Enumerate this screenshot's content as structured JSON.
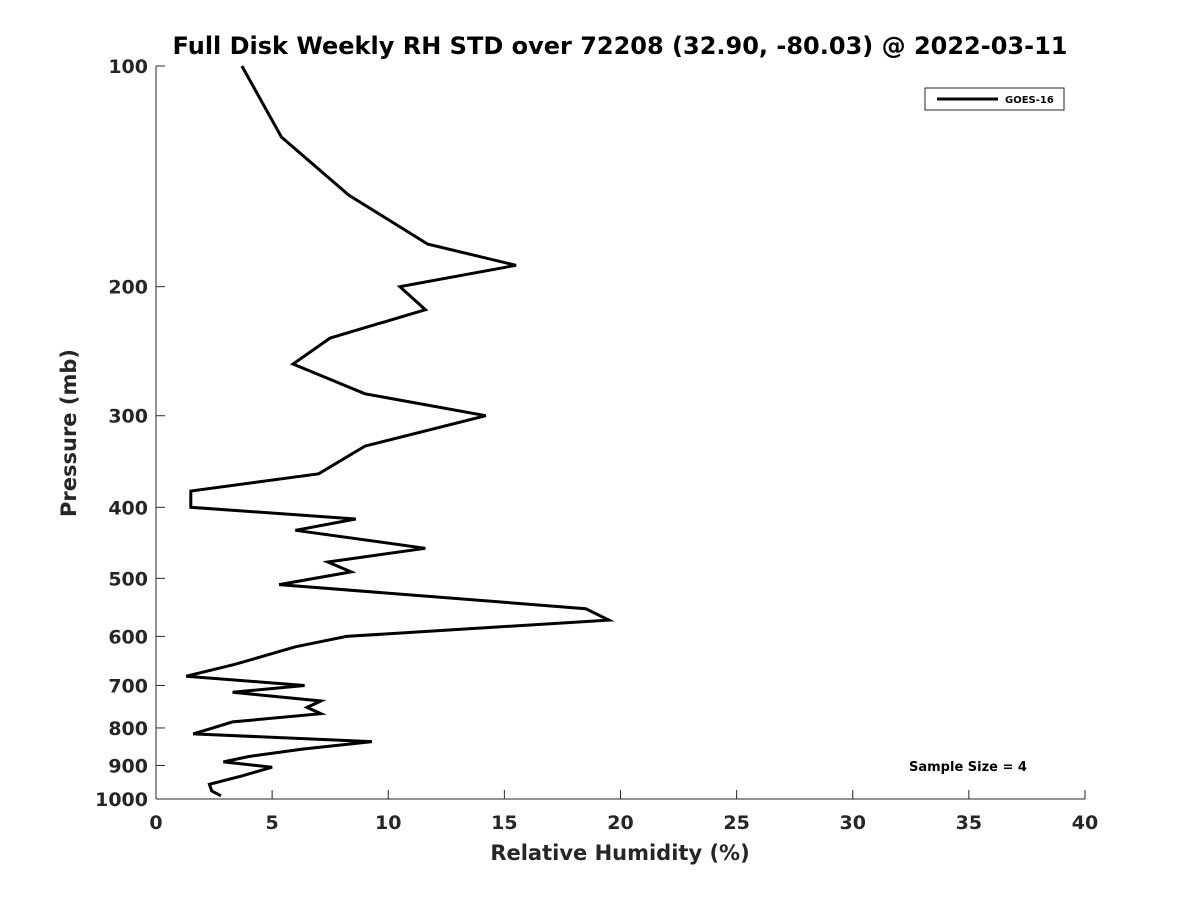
{
  "chart_data": {
    "type": "line",
    "title": "Full Disk Weekly RH STD over 72208 (32.90, -80.03) @ 2022-03-11",
    "xlabel": "Relative Humidity (%)",
    "ylabel": "Pressure (mb)",
    "xlim": [
      0,
      40
    ],
    "ylim": [
      100,
      1000
    ],
    "yscale": "log",
    "yreversed": true,
    "xticks": [
      0,
      5,
      10,
      15,
      20,
      25,
      30,
      35,
      40
    ],
    "yticks": [
      100,
      200,
      300,
      400,
      500,
      600,
      700,
      800,
      900,
      1000
    ],
    "xtick_labels": [
      "0",
      "5",
      "10",
      "15",
      "20",
      "25",
      "30",
      "35",
      "40"
    ],
    "ytick_labels": [
      "100",
      "200",
      "300",
      "400",
      "500",
      "600",
      "700",
      "800",
      "900",
      "1000"
    ],
    "grid": false,
    "legend": {
      "position": "top-right",
      "entries": [
        "GOES-16"
      ]
    },
    "annotation": "Sample Size = 4",
    "series": [
      {
        "name": "GOES-16",
        "color": "#000000",
        "x": [
          3.7,
          5.4,
          8.3,
          11.7,
          15.5,
          10.5,
          11.6,
          7.5,
          5.9,
          9.0,
          14.2,
          9.0,
          7.0,
          1.5,
          1.5,
          8.6,
          6.0,
          11.6,
          7.4,
          8.4,
          5.3,
          18.5,
          19.5,
          8.2,
          6.0,
          3.4,
          1.3,
          6.4,
          3.3,
          7.1,
          6.5,
          7.1,
          3.3,
          1.6,
          9.3,
          6.3,
          4.0,
          2.9,
          5.0,
          3.7,
          2.3,
          2.4,
          2.8
        ],
        "y": [
          100,
          125,
          150,
          175,
          187,
          200,
          215,
          235,
          255,
          280,
          300,
          330,
          360,
          380,
          400,
          415,
          430,
          455,
          475,
          490,
          510,
          550,
          570,
          600,
          620,
          655,
          680,
          700,
          715,
          735,
          750,
          765,
          785,
          815,
          835,
          855,
          875,
          890,
          905,
          930,
          955,
          975,
          990
        ]
      }
    ]
  }
}
